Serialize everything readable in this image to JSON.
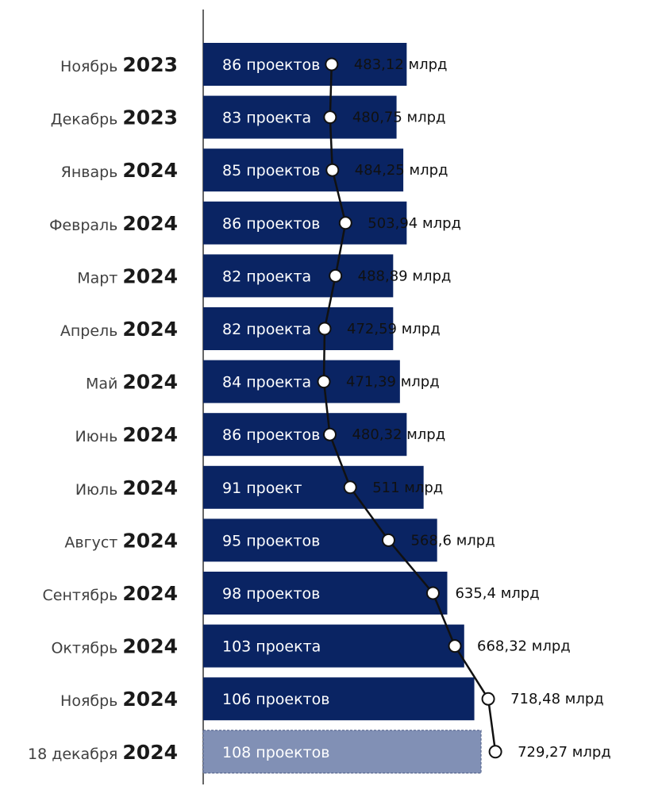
{
  "chart_data": {
    "type": "bar",
    "orientation": "horizontal",
    "categories": [
      {
        "month": "Ноябрь",
        "year": "2023"
      },
      {
        "month": "Декабрь",
        "year": "2023"
      },
      {
        "month": "Январь",
        "year": "2024"
      },
      {
        "month": "Февраль",
        "year": "2024"
      },
      {
        "month": "Март",
        "year": "2024"
      },
      {
        "month": "Апрель",
        "year": "2024"
      },
      {
        "month": "Май",
        "year": "2024"
      },
      {
        "month": "Июнь",
        "year": "2024"
      },
      {
        "month": "Июль",
        "year": "2024"
      },
      {
        "month": "Август",
        "year": "2024"
      },
      {
        "month": "Сентябрь",
        "year": "2024"
      },
      {
        "month": "Октябрь",
        "year": "2024"
      },
      {
        "month": "Ноябрь",
        "year": "2024"
      },
      {
        "month": "18 декабря",
        "year": "2024"
      }
    ],
    "series": [
      {
        "type": "bar",
        "values": [
          86,
          83,
          85,
          86,
          82,
          82,
          84,
          86,
          91,
          95,
          98,
          103,
          106,
          108
        ],
        "labels": [
          "86 проектов",
          "83 проекта",
          "85 проектов",
          "86 проектов",
          "82 проекта",
          "82 проекта",
          "84 проекта",
          "86 проектов",
          "91 проект",
          "95 проектов",
          "98 проектов",
          "103 проекта",
          "106 проектов",
          "108 проектов"
        ]
      },
      {
        "type": "line",
        "values": [
          483.12,
          480.75,
          484.25,
          503.94,
          488.89,
          472.59,
          471.39,
          480.32,
          511,
          568.6,
          635.4,
          668.32,
          718.48,
          729.27
        ],
        "labels": [
          "483,12 млрд",
          "480,75  млрд",
          "484,25 млрд",
          "503,94 млрд",
          "488,89 млрд",
          "472,59 млрд",
          "471,39 млрд",
          "480,32 млрд",
          "511 млрд",
          "568,6 млрд",
          "635,4 млрд",
          "668,32 млрд",
          "718,48 млрд",
          "729,27 млрд"
        ]
      }
    ],
    "last_bar_highlighted": true,
    "colors": {
      "bar": "#0a2463",
      "bar_last": "#8190b5",
      "bar_last_border": "#4a5a85",
      "line": "#111111",
      "marker_fill": "#ffffff",
      "axis": "#333333"
    }
  }
}
